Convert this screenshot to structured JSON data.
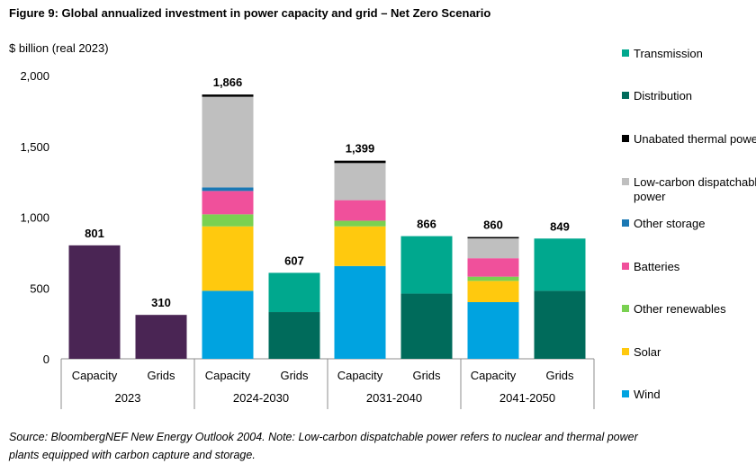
{
  "title": "Figure 9: Global annualized investment in power capacity and grid – Net Zero Scenario",
  "source_lines": [
    "Source: BloombergNEF New Energy Outlook 2004. Note: Low-carbon dispatchable power refers to nuclear and thermal power",
    "plants equipped with carbon capture and storage."
  ],
  "chart_data": {
    "type": "bar",
    "stacked": true,
    "title": "Figure 9: Global annualized investment in power capacity and grid – Net Zero Scenario",
    "ylabel": "$ billion (real 2023)",
    "ylim": [
      0,
      2000
    ],
    "yticks": [
      0,
      500,
      1000,
      1500,
      2000
    ],
    "ytick_labels": [
      "0",
      "500",
      "1,000",
      "1,500",
      "2,000"
    ],
    "grid": false,
    "legend_position": "right",
    "groups": [
      "2023",
      "2024-2030",
      "2031-2040",
      "2041-2050"
    ],
    "categories": [
      "Capacity",
      "Grids",
      "Capacity",
      "Grids",
      "Capacity",
      "Grids",
      "Capacity",
      "Grids"
    ],
    "category_groups": [
      0,
      0,
      1,
      1,
      2,
      2,
      3,
      3
    ],
    "totals": [
      801,
      310,
      1866,
      607,
      1399,
      866,
      860,
      849
    ],
    "total_labels": [
      "801",
      "310",
      "1,866",
      "607",
      "1,399",
      "866",
      "860",
      "849"
    ],
    "series": [
      {
        "name": "Wind",
        "color": "#00a3e0",
        "values": [
          0,
          0,
          480,
          0,
          655,
          0,
          400,
          0
        ]
      },
      {
        "name": "Solar",
        "color": "#ffc90e",
        "values": [
          0,
          0,
          455,
          0,
          280,
          0,
          150,
          0
        ]
      },
      {
        "name": "Other renewables",
        "color": "#7ad151",
        "values": [
          0,
          0,
          85,
          0,
          40,
          0,
          30,
          0
        ]
      },
      {
        "name": "Batteries",
        "color": "#f0509b",
        "values": [
          0,
          0,
          165,
          0,
          145,
          0,
          130,
          0
        ]
      },
      {
        "name": "Other storage",
        "color": "#1a78b4",
        "values": [
          0,
          0,
          25,
          0,
          0,
          0,
          0,
          0
        ]
      },
      {
        "name": "Low-carbon dispatchable power",
        "color": "#bfbfbf",
        "values": [
          0,
          0,
          640,
          0,
          262,
          0,
          140,
          0
        ]
      },
      {
        "name": "Unabated thermal power",
        "color": "#000000",
        "values": [
          0,
          0,
          16,
          0,
          17,
          0,
          10,
          0
        ]
      },
      {
        "name": "Distribution",
        "color": "#006b5b",
        "values": [
          0,
          0,
          0,
          330,
          0,
          460,
          0,
          480
        ]
      },
      {
        "name": "Transmission",
        "color": "#00a88e",
        "values": [
          0,
          0,
          0,
          277,
          0,
          406,
          0,
          369
        ]
      },
      {
        "name": "Total 2023",
        "color": "#4a2554",
        "values": [
          801,
          310,
          0,
          0,
          0,
          0,
          0,
          0
        ]
      }
    ],
    "legend": [
      {
        "lines": [
          "Transmission"
        ],
        "color": "#00a88e"
      },
      {
        "lines": [
          "Distribution"
        ],
        "color": "#006b5b"
      },
      {
        "lines": [
          "Unabated thermal power"
        ],
        "color": "#000000"
      },
      {
        "lines": [
          "Low-carbon dispatchable",
          "power"
        ],
        "color": "#bfbfbf"
      },
      {
        "lines": [
          "Other storage"
        ],
        "color": "#1a78b4"
      },
      {
        "lines": [
          "Batteries"
        ],
        "color": "#f0509b"
      },
      {
        "lines": [
          "Other renewables"
        ],
        "color": "#7ad151"
      },
      {
        "lines": [
          "Solar"
        ],
        "color": "#ffc90e"
      },
      {
        "lines": [
          "Wind"
        ],
        "color": "#00a3e0"
      }
    ]
  }
}
